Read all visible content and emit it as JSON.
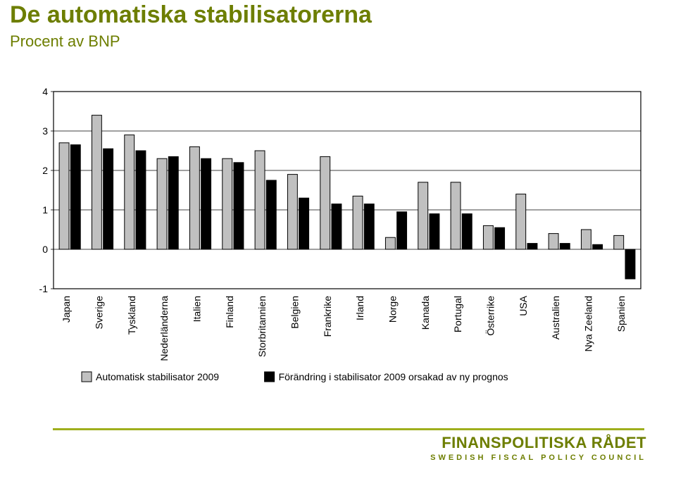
{
  "title": "De automatiska stabilisatorerna",
  "subtitle": "Procent av BNP",
  "footer_brand": "FINANSPOLITISKA RÅDET",
  "footer_sub": "SWEDISH FISCAL POLICY COUNCIL",
  "chart": {
    "type": "bar",
    "ylim": [
      -1,
      4
    ],
    "ytick_step": 1,
    "yticks": [
      -1,
      0,
      1,
      2,
      3,
      4
    ],
    "grid_color": "#000000",
    "axis_color": "#000000",
    "background_color": "#ffffff",
    "plot_border_color": "#000000",
    "bar_border_width": 1,
    "series": [
      {
        "label": "Automatisk stabilisator 2009",
        "color": "#c0c0c0",
        "border": "#000000"
      },
      {
        "label": "Förändring i stabilisator 2009 orsakad av ny prognos",
        "color": "#000000",
        "border": "#000000"
      }
    ],
    "categories": [
      "Japan",
      "Sverige",
      "Tyskland",
      "Nederländerna",
      "Italien",
      "Finland",
      "Storbritannien",
      "Belgien",
      "Frankrike",
      "Irland",
      "Norge",
      "Kanada",
      "Portugal",
      "Österrike",
      "USA",
      "Australien",
      "Nya Zeeland",
      "Spanien"
    ],
    "data": {
      "s0": [
        2.7,
        3.4,
        2.9,
        2.3,
        2.6,
        2.3,
        2.5,
        1.9,
        2.35,
        1.35,
        0.3,
        1.7,
        1.7,
        0.6,
        1.4,
        0.4,
        0.5,
        0.35
      ],
      "s1": [
        2.65,
        2.55,
        2.5,
        2.35,
        2.3,
        2.2,
        1.75,
        1.3,
        1.15,
        1.15,
        0.95,
        0.9,
        0.9,
        0.55,
        0.15,
        0.15,
        0.12,
        -0.75
      ]
    },
    "tick_fontsize": 14,
    "cat_fontsize": 14,
    "legend_fontsize": 14,
    "bar_group_width_ratio": 0.65,
    "bar_gap_ratio": 0.05
  }
}
